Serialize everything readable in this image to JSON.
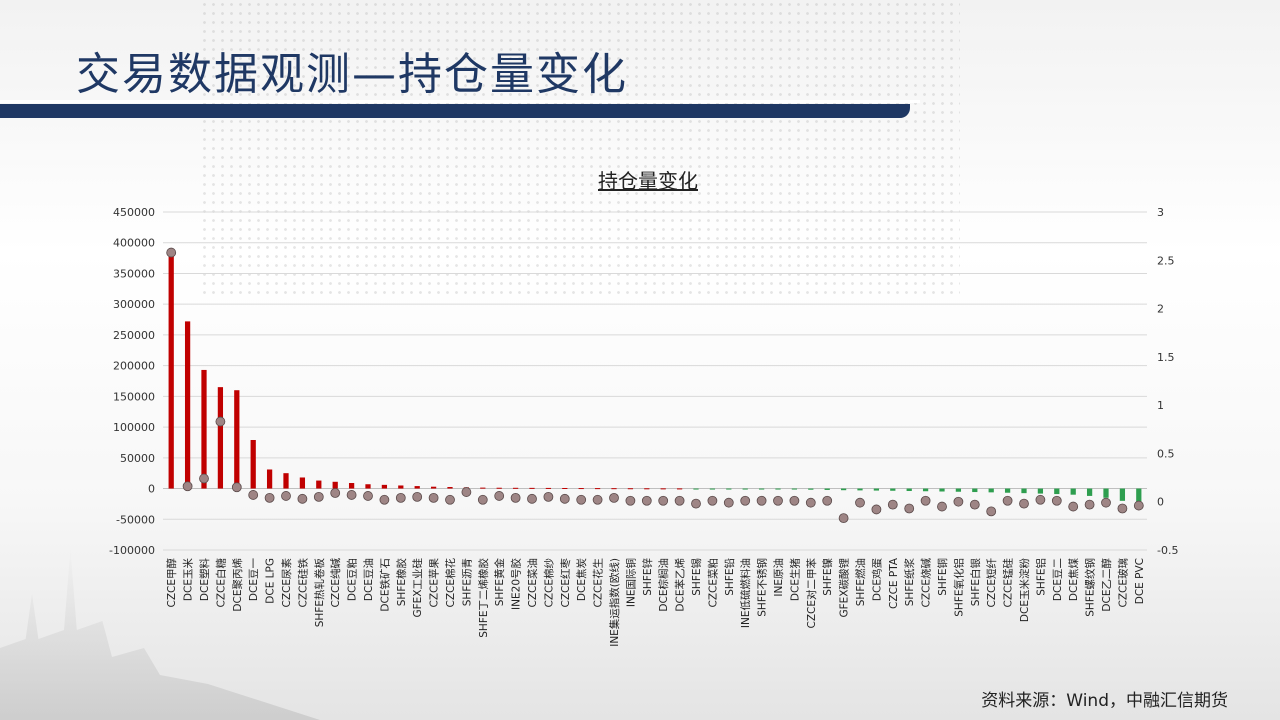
{
  "slide": {
    "title": "交易数据观测—持仓量变化",
    "source": "资料来源：Wind，中融汇信期货"
  },
  "colors": {
    "positive_bar": "#c00000",
    "negative_bar": "#2e9e4f",
    "dot": "#9e8585",
    "title": "#1f3864"
  },
  "chart_data": {
    "type": "bar",
    "title": "持仓量变化",
    "grid": true,
    "ylim": [
      -100000,
      450000
    ],
    "y2lim": [
      -0.5,
      3
    ],
    "y_ticks": [
      "450000",
      "400000",
      "350000",
      "300000",
      "250000",
      "200000",
      "150000",
      "100000",
      "50000",
      "0",
      "-50000",
      "-100000"
    ],
    "y2_ticks": [
      "3",
      "2.5",
      "2",
      "1.5",
      "1",
      "0.5",
      "0",
      "-0.5"
    ],
    "categories": [
      "CZCE甲醇",
      "DCE玉米",
      "DCE塑料",
      "CZCE白糖",
      "DCE聚丙烯",
      "DCE豆一",
      "DCE LPG",
      "CZCE尿素",
      "CZCE硅铁",
      "SHFE热轧卷板",
      "CZCE纯碱",
      "DCE豆粕",
      "DCE豆油",
      "DCE铁矿石",
      "SHFE橡胶",
      "GFEX工业硅",
      "CZCE苹果",
      "CZCE棉花",
      "SHFE沥青",
      "SHFE丁二烯橡胶",
      "SHFE黄金",
      "INE20号胶",
      "CZCE菜油",
      "CZCE棉纱",
      "CZCE红枣",
      "DCE焦炭",
      "CZCE花生",
      "INE集运指数(欧线)",
      "INE国际铜",
      "SHFE锌",
      "DCE棕榈油",
      "DCE苯乙烯",
      "SHFE锡",
      "CZCE菜粕",
      "SHFE铅",
      "INE低硫燃料油",
      "SHFE不锈钢",
      "INE原油",
      "DCE生猪",
      "CZCE对二甲苯",
      "SHFE镍",
      "GFEX碳酸锂",
      "SHFE燃油",
      "DCE鸡蛋",
      "CZCE PTA",
      "SHFE纸浆",
      "CZCE烧碱",
      "SHFE铜",
      "SHFE氧化铝",
      "SHFE白银",
      "CZCE短纤",
      "CZCE锰硅",
      "DCE玉米淀粉",
      "SHFE铝",
      "DCE豆二",
      "DCE焦煤",
      "SHFE螺纹钢",
      "DCE乙二醇",
      "CZCE玻璃",
      "DCE PVC"
    ],
    "series": [
      {
        "axis": "left",
        "values": [
          382000,
          272000,
          193000,
          165000,
          160000,
          79000,
          31000,
          25000,
          18000,
          13000,
          11000,
          9000,
          7000,
          6000,
          5000,
          4000,
          3000,
          2500,
          2000,
          1500,
          1300,
          1200,
          1100,
          1000,
          900,
          800,
          700,
          600,
          500,
          400,
          300,
          200,
          -300,
          -500,
          -700,
          -900,
          -1100,
          -1300,
          -1600,
          -1900,
          -2300,
          -2700,
          -3000,
          -3300,
          -3600,
          -4000,
          -4400,
          -4800,
          -5200,
          -5700,
          -6200,
          -6800,
          -7500,
          -8200,
          -9000,
          -10000,
          -12000,
          -15000,
          -20000,
          -28000
        ]
      },
      {
        "axis": "right",
        "values": [
          2.58,
          0.16,
          0.24,
          0.83,
          0.15,
          0.07,
          0.04,
          0.06,
          0.03,
          0.05,
          0.09,
          0.07,
          0.06,
          0.02,
          0.04,
          0.05,
          0.04,
          0.02,
          0.1,
          0.02,
          0.06,
          0.04,
          0.03,
          0.05,
          0.03,
          0.02,
          0.02,
          0.04,
          0.01,
          0.01,
          0.01,
          0.01,
          -0.02,
          0.01,
          -0.01,
          0.01,
          0.01,
          0.01,
          0.01,
          -0.01,
          0.01,
          -0.17,
          -0.01,
          -0.08,
          -0.03,
          -0.07,
          0.01,
          -0.05,
          0.0,
          -0.03,
          -0.1,
          0.01,
          -0.02,
          0.02,
          0.01,
          -0.05,
          -0.03,
          -0.01,
          -0.07,
          -0.04
        ]
      }
    ]
  }
}
